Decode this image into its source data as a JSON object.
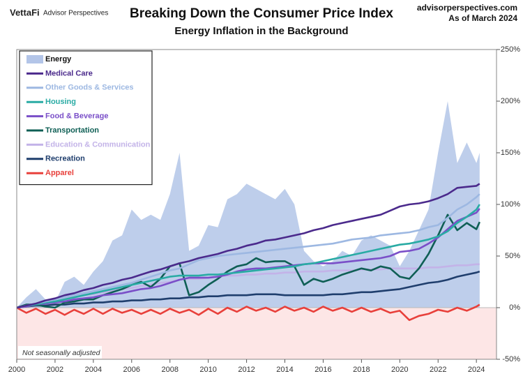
{
  "chart_data": {
    "type": "line",
    "title": "Breaking Down the Consumer Price Index",
    "subtitle": "Energy Inflation in the Background",
    "logo": "VettaFi",
    "brand": "Advisor Perspectives",
    "site": "advisorperspectives.com",
    "as_of": "As of March 2024",
    "note": "Not seasonally adjusted",
    "legend": "upper left",
    "xlim": [
      2000,
      2025.05
    ],
    "xticks": [
      2000,
      2002,
      2004,
      2006,
      2008,
      2010,
      2012,
      2014,
      2016,
      2018,
      2020,
      2022,
      2024
    ],
    "ylim": [
      -50,
      250
    ],
    "yticks": [
      {
        "value": -50,
        "label": "-50%"
      },
      {
        "value": 0,
        "label": "0%"
      },
      {
        "value": 50,
        "label": "50%"
      },
      {
        "value": 100,
        "label": "100%"
      },
      {
        "value": 150,
        "label": "150%"
      },
      {
        "value": 200,
        "label": "200%"
      },
      {
        "value": 250,
        "label": "250%"
      }
    ],
    "x": [
      2000,
      2000.5,
      2001,
      2001.5,
      2002,
      2002.5,
      2003,
      2003.5,
      2004,
      2004.5,
      2005,
      2005.5,
      2006,
      2006.5,
      2007,
      2007.5,
      2008,
      2008.5,
      2009,
      2009.5,
      2010,
      2010.5,
      2011,
      2011.5,
      2012,
      2012.5,
      2013,
      2013.5,
      2014,
      2014.5,
      2015,
      2015.5,
      2016,
      2016.5,
      2017,
      2017.5,
      2018,
      2018.5,
      2019,
      2019.5,
      2020,
      2020.5,
      2021,
      2021.5,
      2022,
      2022.5,
      2023,
      2023.5,
      2024,
      2024.17
    ],
    "series": [
      {
        "name": "Energy",
        "style": "area",
        "color": "#b3c5e8",
        "values": [
          0,
          10,
          18,
          8,
          5,
          25,
          30,
          22,
          35,
          45,
          65,
          70,
          95,
          85,
          90,
          85,
          110,
          150,
          55,
          60,
          80,
          78,
          105,
          110,
          120,
          115,
          110,
          105,
          115,
          100,
          55,
          45,
          40,
          45,
          55,
          50,
          65,
          70,
          65,
          60,
          40,
          55,
          75,
          95,
          150,
          200,
          140,
          160,
          140,
          150
        ]
      },
      {
        "name": "Medical Care",
        "style": "line",
        "color": "#4b2a8c",
        "values": [
          0,
          2,
          4,
          7,
          9,
          12,
          14,
          17,
          19,
          22,
          24,
          27,
          29,
          32,
          35,
          37,
          40,
          43,
          45,
          48,
          50,
          52,
          55,
          57,
          60,
          62,
          65,
          66,
          68,
          70,
          72,
          75,
          77,
          80,
          82,
          84,
          86,
          88,
          90,
          94,
          98,
          100,
          101,
          103,
          106,
          110,
          116,
          117,
          118,
          120
        ]
      },
      {
        "name": "Other Goods & Services",
        "style": "line",
        "color": "#9db8e2",
        "values": [
          0,
          2,
          4,
          6,
          8,
          10,
          12,
          14,
          16,
          18,
          20,
          22,
          24,
          27,
          30,
          33,
          36,
          38,
          42,
          46,
          48,
          50,
          51,
          52,
          53,
          54,
          55,
          56,
          57,
          58,
          59,
          60,
          61,
          62,
          64,
          66,
          67,
          68,
          70,
          71,
          72,
          73,
          75,
          78,
          80,
          87,
          95,
          100,
          107,
          110
        ]
      },
      {
        "name": "Housing",
        "style": "line",
        "color": "#29aba4",
        "values": [
          0,
          2,
          3,
          5,
          6,
          8,
          10,
          12,
          14,
          16,
          18,
          20,
          22,
          24,
          26,
          28,
          30,
          31,
          31,
          31,
          32,
          32,
          33,
          34,
          35,
          36,
          37,
          38,
          39,
          40,
          42,
          43,
          45,
          47,
          49,
          51,
          53,
          55,
          57,
          59,
          61,
          62,
          64,
          66,
          69,
          74,
          82,
          88,
          95,
          100
        ]
      },
      {
        "name": "Food & Beverage",
        "style": "line",
        "color": "#7a4fc8",
        "values": [
          0,
          1,
          3,
          4,
          5,
          6,
          8,
          9,
          10,
          12,
          13,
          14,
          16,
          18,
          19,
          21,
          24,
          27,
          29,
          29,
          29,
          30,
          32,
          35,
          37,
          38,
          38,
          39,
          40,
          41,
          42,
          43,
          43,
          43,
          44,
          45,
          46,
          47,
          48,
          50,
          54,
          55,
          57,
          62,
          68,
          76,
          84,
          88,
          92,
          96
        ]
      },
      {
        "name": "Transportation",
        "style": "line",
        "color": "#0f5f55",
        "values": [
          0,
          3,
          3,
          1,
          0,
          5,
          6,
          8,
          8,
          12,
          15,
          18,
          22,
          25,
          20,
          28,
          40,
          43,
          12,
          15,
          22,
          28,
          35,
          40,
          42,
          48,
          44,
          45,
          45,
          40,
          22,
          28,
          25,
          28,
          32,
          35,
          38,
          36,
          40,
          38,
          30,
          28,
          38,
          52,
          70,
          90,
          75,
          82,
          76,
          83
        ]
      },
      {
        "name": "Education & Communication",
        "style": "line",
        "color": "#c3b3e8",
        "values": [
          0,
          2,
          4,
          5,
          7,
          9,
          10,
          12,
          13,
          15,
          16,
          18,
          19,
          21,
          22,
          24,
          25,
          27,
          28,
          28,
          29,
          30,
          31,
          31,
          32,
          32,
          33,
          33,
          34,
          34,
          35,
          35,
          35,
          36,
          36,
          36,
          37,
          37,
          37,
          38,
          38,
          38,
          38,
          39,
          39,
          40,
          41,
          41,
          42,
          42
        ]
      },
      {
        "name": "Recreation",
        "style": "line",
        "color": "#1f3e6d",
        "values": [
          0,
          1,
          2,
          2,
          3,
          3,
          4,
          4,
          5,
          5,
          6,
          6,
          7,
          7,
          8,
          8,
          9,
          9,
          10,
          10,
          11,
          11,
          12,
          12,
          12,
          13,
          13,
          13,
          12,
          12,
          12,
          12,
          12,
          13,
          13,
          14,
          15,
          15,
          16,
          17,
          18,
          20,
          22,
          24,
          25,
          27,
          30,
          32,
          34,
          35
        ]
      },
      {
        "name": "Apparel",
        "style": "line",
        "color": "#e8403b",
        "values": [
          0,
          -5,
          -1,
          -6,
          -2,
          -7,
          -2,
          -6,
          -1,
          -6,
          -1,
          -5,
          -2,
          -6,
          -2,
          -6,
          -1,
          -5,
          -2,
          -7,
          -1,
          -6,
          0,
          -4,
          1,
          -3,
          0,
          -4,
          1,
          -3,
          0,
          -4,
          1,
          -3,
          0,
          -4,
          0,
          -4,
          -1,
          -5,
          -3,
          -12,
          -8,
          -6,
          -2,
          -4,
          0,
          -3,
          1,
          3
        ]
      }
    ]
  }
}
